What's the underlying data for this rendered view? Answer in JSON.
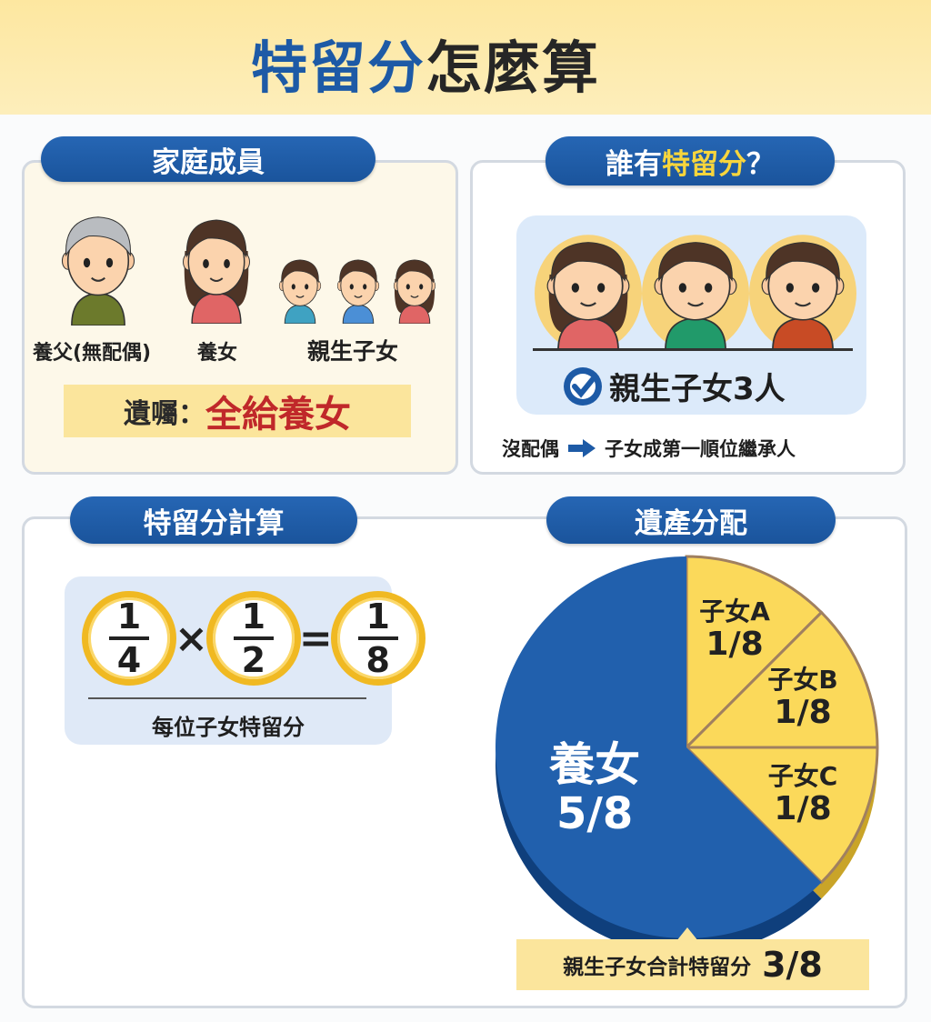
{
  "header": {
    "title_blue": "特留分",
    "title_dark": "怎麼算"
  },
  "family": {
    "title": "家庭成員",
    "members": [
      {
        "label": "養父(無配偶)"
      },
      {
        "label": "養女"
      },
      {
        "label": "親生子女"
      }
    ],
    "will_label": "遺囑：",
    "will_value": "全給養女"
  },
  "who": {
    "title_pre": "誰有",
    "title_hl": "特留分",
    "title_post": "？",
    "check_text": "親生子女3人",
    "note_left": "沒配偶",
    "note_right": "子女成第一順位繼承人"
  },
  "calc": {
    "title": "特留分計算",
    "fractions": [
      {
        "num": "1",
        "den": "4"
      },
      {
        "num": "1",
        "den": "2"
      },
      {
        "num": "1",
        "den": "8"
      }
    ],
    "times": "×",
    "equals": "=",
    "caption": "每位子女特留分"
  },
  "distribution": {
    "title": "遺產分配",
    "total_label": "親生子女合計特留分",
    "total_value": "3/8"
  },
  "chart_data": {
    "type": "pie",
    "slices": [
      {
        "name": "子女A",
        "label": "1/8",
        "value": 0.125,
        "color": "#fbd95a"
      },
      {
        "name": "子女B",
        "label": "1/8",
        "value": 0.125,
        "color": "#fbd95a"
      },
      {
        "name": "子女C",
        "label": "1/8",
        "value": 0.125,
        "color": "#fbd95a"
      },
      {
        "name": "養女",
        "label": "5/8",
        "value": 0.625,
        "color": "#2160ad"
      }
    ]
  }
}
